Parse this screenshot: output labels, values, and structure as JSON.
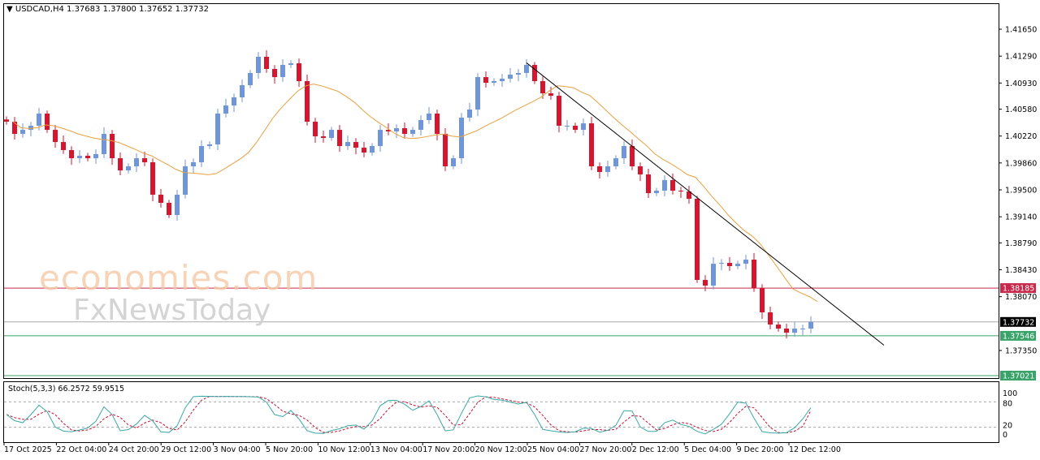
{
  "header": {
    "symbol": "USDCAD,H4",
    "ohlc": "1.37683 1.37800 1.37652 1.37732"
  },
  "watermark": {
    "line1": "economies.com",
    "line2": "FxNewsToday"
  },
  "colors": {
    "bull": "#6f96dc",
    "bear": "#d7152f",
    "ma": "#e8a040",
    "trendline": "#000000",
    "resistance": "#c8284c",
    "support": "#3aa36a",
    "current": "#000000",
    "stoch_main": "#3aa8a8",
    "stoch_signal": "#c8102e"
  },
  "chart_data": {
    "type": "candlestick",
    "timeframe": "H4",
    "y_ticks": [
      "1.41650",
      "1.41290",
      "1.40930",
      "1.40580",
      "1.40220",
      "1.39860",
      "1.39500",
      "1.39140",
      "1.38790",
      "1.38430",
      "1.38070",
      "1.37350"
    ],
    "ylim": [
      1.3698,
      1.4205
    ],
    "x_ticks": [
      "17 Oct 2025",
      "22 Oct 04:00",
      "24 Oct 20:00",
      "29 Oct 12:00",
      "3 Nov 04:00",
      "5 Nov 20:00",
      "10 Nov 12:00",
      "13 Nov 04:00",
      "17 Nov 20:00",
      "20 Nov 12:00",
      "25 Nov 04:00",
      "27 Nov 20:00",
      "2 Dec 12:00",
      "5 Dec 04:00",
      "9 Dec 20:00",
      "12 Dec 12:00"
    ],
    "closes": [
      1.40412,
      1.40249,
      1.40303,
      1.40358,
      1.40521,
      1.40303,
      1.4014,
      1.40032,
      1.39923,
      1.39956,
      1.39923,
      1.39978,
      1.40249,
      1.39923,
      1.3976,
      1.39815,
      1.39923,
      1.39869,
      1.39435,
      1.39326,
      1.39163,
      1.39435,
      1.39815,
      1.39869,
      1.40086,
      1.40108,
      1.40521,
      1.40629,
      1.40738,
      1.40901,
      1.41064,
      1.41281,
      1.41118,
      1.41009,
      1.41172,
      1.41194,
      1.40955,
      1.40412,
      1.40216,
      1.40195,
      1.40303,
      1.40086,
      1.4014,
      1.40064,
      1.39999,
      1.40086,
      1.40303,
      1.40282,
      1.40325,
      1.40249,
      1.40303,
      1.40434,
      1.40521,
      1.40249,
      1.39815,
      1.39923,
      1.40466,
      1.40575,
      1.41009,
      1.40933,
      1.40955,
      1.40988,
      1.41042,
      1.41064,
      1.41172,
      1.40955,
      1.40792,
      1.40759,
      1.40358,
      1.40358,
      1.40303,
      1.4039,
      1.39815,
      1.39739,
      1.39815,
      1.39923,
      1.40086,
      1.39815,
      1.39706,
      1.39456,
      1.39489,
      1.3963,
      1.39489,
      1.39478,
      1.3938,
      1.38294,
      1.38218,
      1.38511,
      1.38522,
      1.38479,
      1.38511,
      1.38566,
      1.38186,
      1.3786,
      1.37697,
      1.37643,
      1.37588,
      1.37643,
      1.37643,
      1.37732
    ],
    "moving_average": {
      "type": "SMA"
    },
    "trendline": {
      "from": {
        "time": "25 Nov 04:00",
        "price": 1.412
      },
      "to_price": 1.3742
    },
    "horizontal_lines": [
      {
        "price": 1.38185,
        "label": "1.38185",
        "role": "resistance"
      },
      {
        "price": 1.37732,
        "label": "1.37732",
        "role": "current"
      },
      {
        "price": 1.37546,
        "label": "1.37546",
        "role": "support"
      },
      {
        "price": 1.37021,
        "label": "1.37021",
        "role": "support"
      }
    ],
    "stochastic": {
      "label": "Stoch(5,3,3) 66.2572 59.9515",
      "levels": [
        "100",
        "80",
        "20",
        "0"
      ],
      "main_last": 66.2572,
      "signal_last": 59.9515
    }
  }
}
